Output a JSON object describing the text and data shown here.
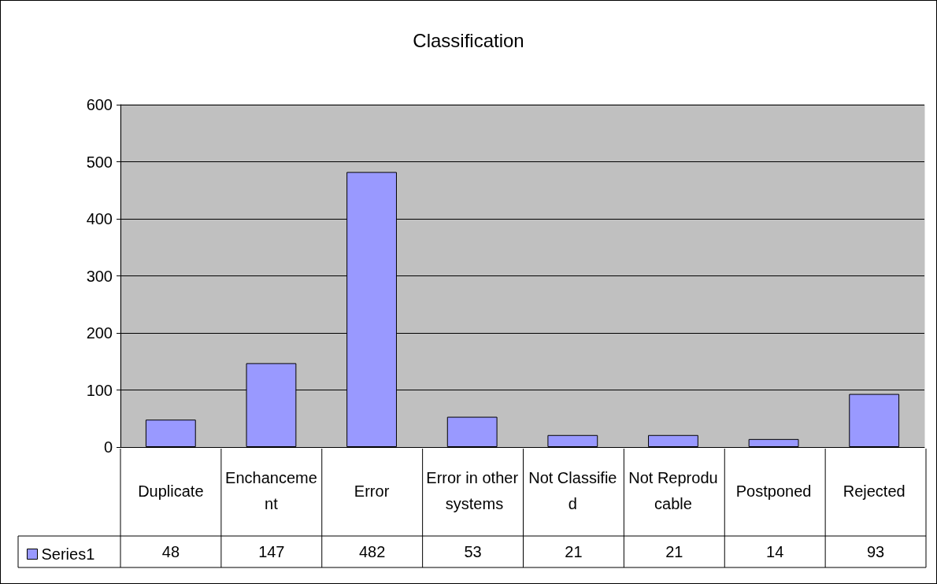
{
  "chart_data": {
    "type": "bar",
    "title": "Classification",
    "categories": [
      "Duplicate",
      "Enchancement",
      "Error",
      "Error in other systems",
      "Not Classified",
      "Not Reproducable",
      "Postponed",
      "Rejected"
    ],
    "series": [
      {
        "name": "Series1",
        "color": "#9999ff",
        "values": [
          48,
          147,
          482,
          53,
          21,
          21,
          14,
          93
        ]
      }
    ],
    "ylim": [
      0,
      600
    ],
    "yticks": [
      0,
      100,
      200,
      300,
      400,
      500,
      600
    ],
    "grid": "y",
    "legend": "bottom left",
    "data_labels": true
  }
}
